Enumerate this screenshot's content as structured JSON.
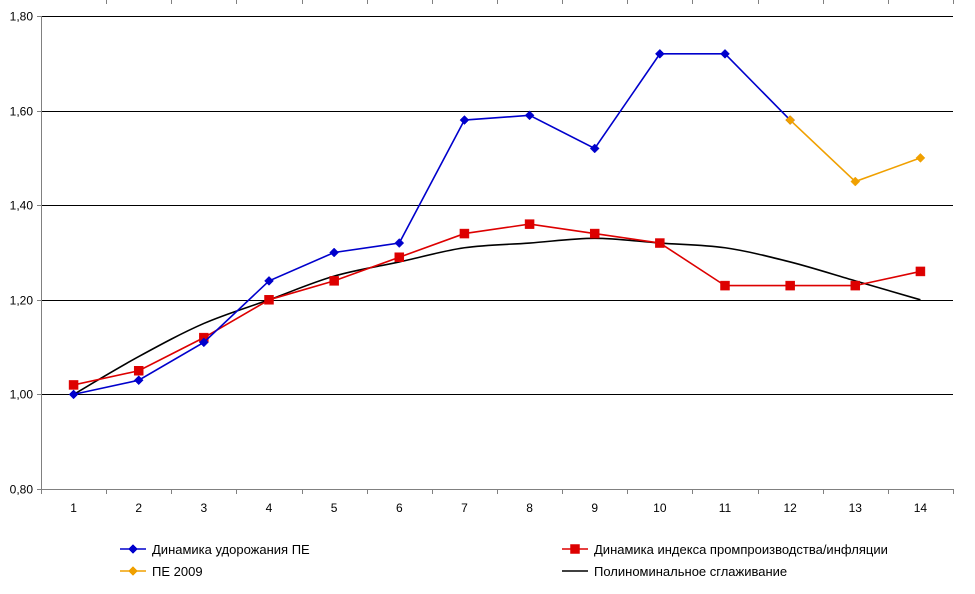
{
  "chart_data": {
    "type": "line",
    "x": [
      1,
      2,
      3,
      4,
      5,
      6,
      7,
      8,
      9,
      10,
      11,
      12,
      13,
      14
    ],
    "x_tick_labels": [
      "1",
      "2",
      "3",
      "4",
      "5",
      "6",
      "7",
      "8",
      "9",
      "10",
      "11",
      "12",
      "13",
      "14"
    ],
    "ylim": [
      0.8,
      1.8
    ],
    "y_ticks": [
      0.8,
      1.0,
      1.2,
      1.4,
      1.6,
      1.8
    ],
    "y_tick_labels": [
      "0,80",
      "1,00",
      "1,20",
      "1,40",
      "1,60",
      "1,80"
    ],
    "grid": "horizontal",
    "legend_position": "bottom",
    "title": "",
    "xlabel": "",
    "ylabel": "",
    "series": [
      {
        "name": "Динамика удорожания ПЕ",
        "color": "#0000cc",
        "marker": "diamond",
        "x": [
          1,
          2,
          3,
          4,
          5,
          6,
          7,
          8,
          9,
          10,
          11,
          12
        ],
        "values": [
          1.0,
          1.03,
          1.11,
          1.24,
          1.3,
          1.32,
          1.58,
          1.59,
          1.52,
          1.72,
          1.72,
          1.58
        ]
      },
      {
        "name": "Динамика индекса промпроизводства/инфляции",
        "color": "#dd0000",
        "marker": "square",
        "x": [
          1,
          2,
          3,
          4,
          5,
          6,
          7,
          8,
          9,
          10,
          11,
          12,
          13,
          14
        ],
        "values": [
          1.02,
          1.05,
          1.12,
          1.2,
          1.24,
          1.29,
          1.34,
          1.36,
          1.34,
          1.32,
          1.23,
          1.23,
          1.23,
          1.26
        ]
      },
      {
        "name": "ПЕ 2009",
        "color": "#f0a000",
        "marker": "diamond",
        "x": [
          12,
          13,
          14
        ],
        "values": [
          1.58,
          1.45,
          1.5
        ]
      },
      {
        "name": "Полиноминальное сглаживание",
        "color": "#000000",
        "marker": "none",
        "smooth": true,
        "x": [
          1,
          2,
          3,
          4,
          5,
          6,
          7,
          8,
          9,
          10,
          11,
          12,
          13,
          14
        ],
        "values": [
          1.0,
          1.08,
          1.15,
          1.2,
          1.25,
          1.28,
          1.31,
          1.32,
          1.33,
          1.32,
          1.31,
          1.28,
          1.24,
          1.2
        ]
      }
    ],
    "legend_order": [
      0,
      1,
      2,
      3
    ]
  }
}
